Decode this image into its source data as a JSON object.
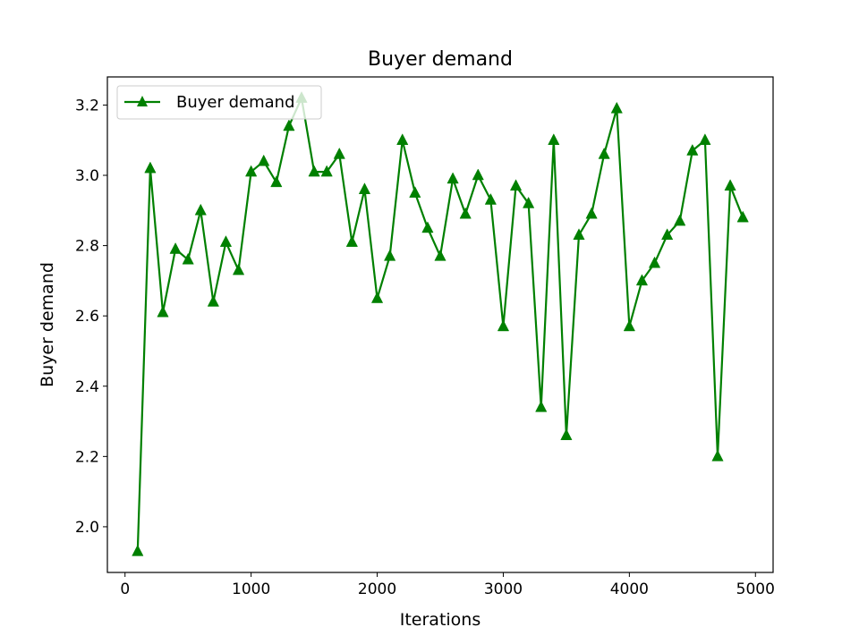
{
  "chart_data": {
    "type": "line",
    "title": "Buyer demand",
    "xlabel": "Iterations",
    "ylabel": "Buyer demand",
    "xlim": [
      -140,
      5140
    ],
    "ylim": [
      1.87,
      3.28
    ],
    "xticks": [
      0,
      1000,
      2000,
      3000,
      4000,
      5000
    ],
    "yticks": [
      2.0,
      2.2,
      2.4,
      2.6,
      2.8,
      3.0,
      3.2
    ],
    "xtick_labels": [
      "0",
      "1000",
      "2000",
      "3000",
      "4000",
      "5000"
    ],
    "ytick_labels": [
      "2.0",
      "2.2",
      "2.4",
      "2.6",
      "2.8",
      "3.0",
      "3.2"
    ],
    "grid": false,
    "legend": {
      "position": "top-left"
    },
    "series": [
      {
        "name": "Buyer demand",
        "color": "#008000",
        "marker": "triangle-up",
        "x": [
          100,
          200,
          300,
          400,
          500,
          600,
          700,
          800,
          900,
          1000,
          1100,
          1200,
          1300,
          1400,
          1500,
          1600,
          1700,
          1800,
          1900,
          2000,
          2100,
          2200,
          2300,
          2400,
          2500,
          2600,
          2700,
          2800,
          2900,
          3000,
          3100,
          3200,
          3300,
          3400,
          3500,
          3600,
          3700,
          3800,
          3900,
          4000,
          4100,
          4200,
          4300,
          4400,
          4500,
          4600,
          4700,
          4800,
          4900
        ],
        "values": [
          1.93,
          3.02,
          2.61,
          2.79,
          2.76,
          2.9,
          2.64,
          2.81,
          2.73,
          3.01,
          3.04,
          2.98,
          3.14,
          3.22,
          3.01,
          3.01,
          3.06,
          2.81,
          2.96,
          2.65,
          2.77,
          3.1,
          2.95,
          2.85,
          2.77,
          2.99,
          2.89,
          3.0,
          2.93,
          2.57,
          2.97,
          2.92,
          2.34,
          3.1,
          2.26,
          2.83,
          2.89,
          3.06,
          3.19,
          2.57,
          2.7,
          2.75,
          2.83,
          2.87,
          3.07,
          3.1,
          2.2,
          2.97,
          2.88
        ]
      }
    ]
  }
}
